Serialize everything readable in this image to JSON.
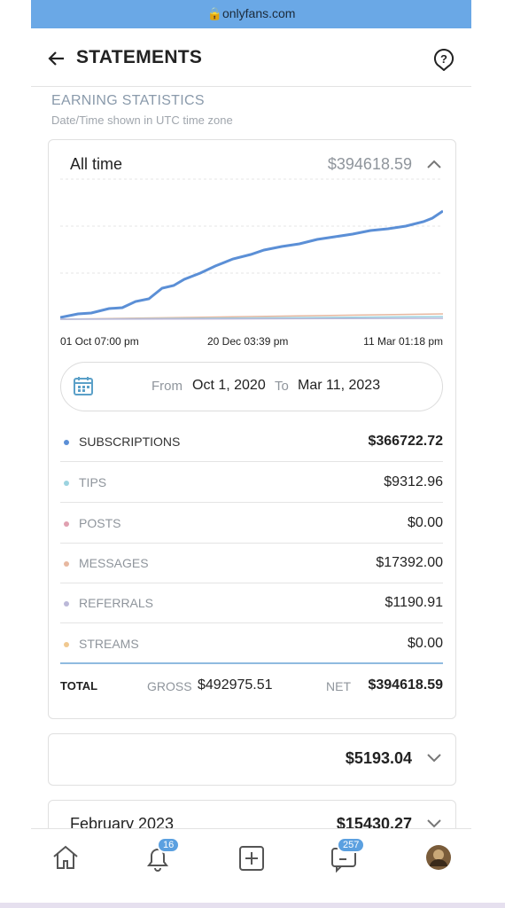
{
  "browser": {
    "url": "onlyfans.com"
  },
  "header": {
    "title": "STATEMENTS"
  },
  "section": {
    "title": "EARNING STATISTICS",
    "subtitle": "Date/Time shown in UTC time zone"
  },
  "summary": {
    "period": "All time",
    "amount": "$394618.59",
    "x_labels": [
      "01 Oct 07:00 pm",
      "20 Dec 03:39 pm",
      "11 Mar 01:18 pm"
    ],
    "from_label": "From",
    "from": "Oct 1, 2020",
    "to_label": "To",
    "to": "Mar 11, 2023",
    "rows": [
      {
        "name": "SUBSCRIPTIONS",
        "amount": "$366722.72"
      },
      {
        "name": "TIPS",
        "amount": "$9312.96"
      },
      {
        "name": "POSTS",
        "amount": "$0.00"
      },
      {
        "name": "MESSAGES",
        "amount": "$17392.00"
      },
      {
        "name": "REFERRALS",
        "amount": "$1190.91"
      },
      {
        "name": "STREAMS",
        "amount": "$0.00"
      }
    ],
    "total": {
      "label": "TOTAL",
      "gross_label": "GROSS",
      "gross": "$492975.51",
      "net_label": "NET",
      "net": "$394618.59"
    }
  },
  "months": [
    {
      "amount": "$5193.04"
    },
    {
      "name": "February 2023",
      "amount": "$15430.27"
    }
  ],
  "nav": {
    "badges": [
      "16",
      "257"
    ]
  }
}
